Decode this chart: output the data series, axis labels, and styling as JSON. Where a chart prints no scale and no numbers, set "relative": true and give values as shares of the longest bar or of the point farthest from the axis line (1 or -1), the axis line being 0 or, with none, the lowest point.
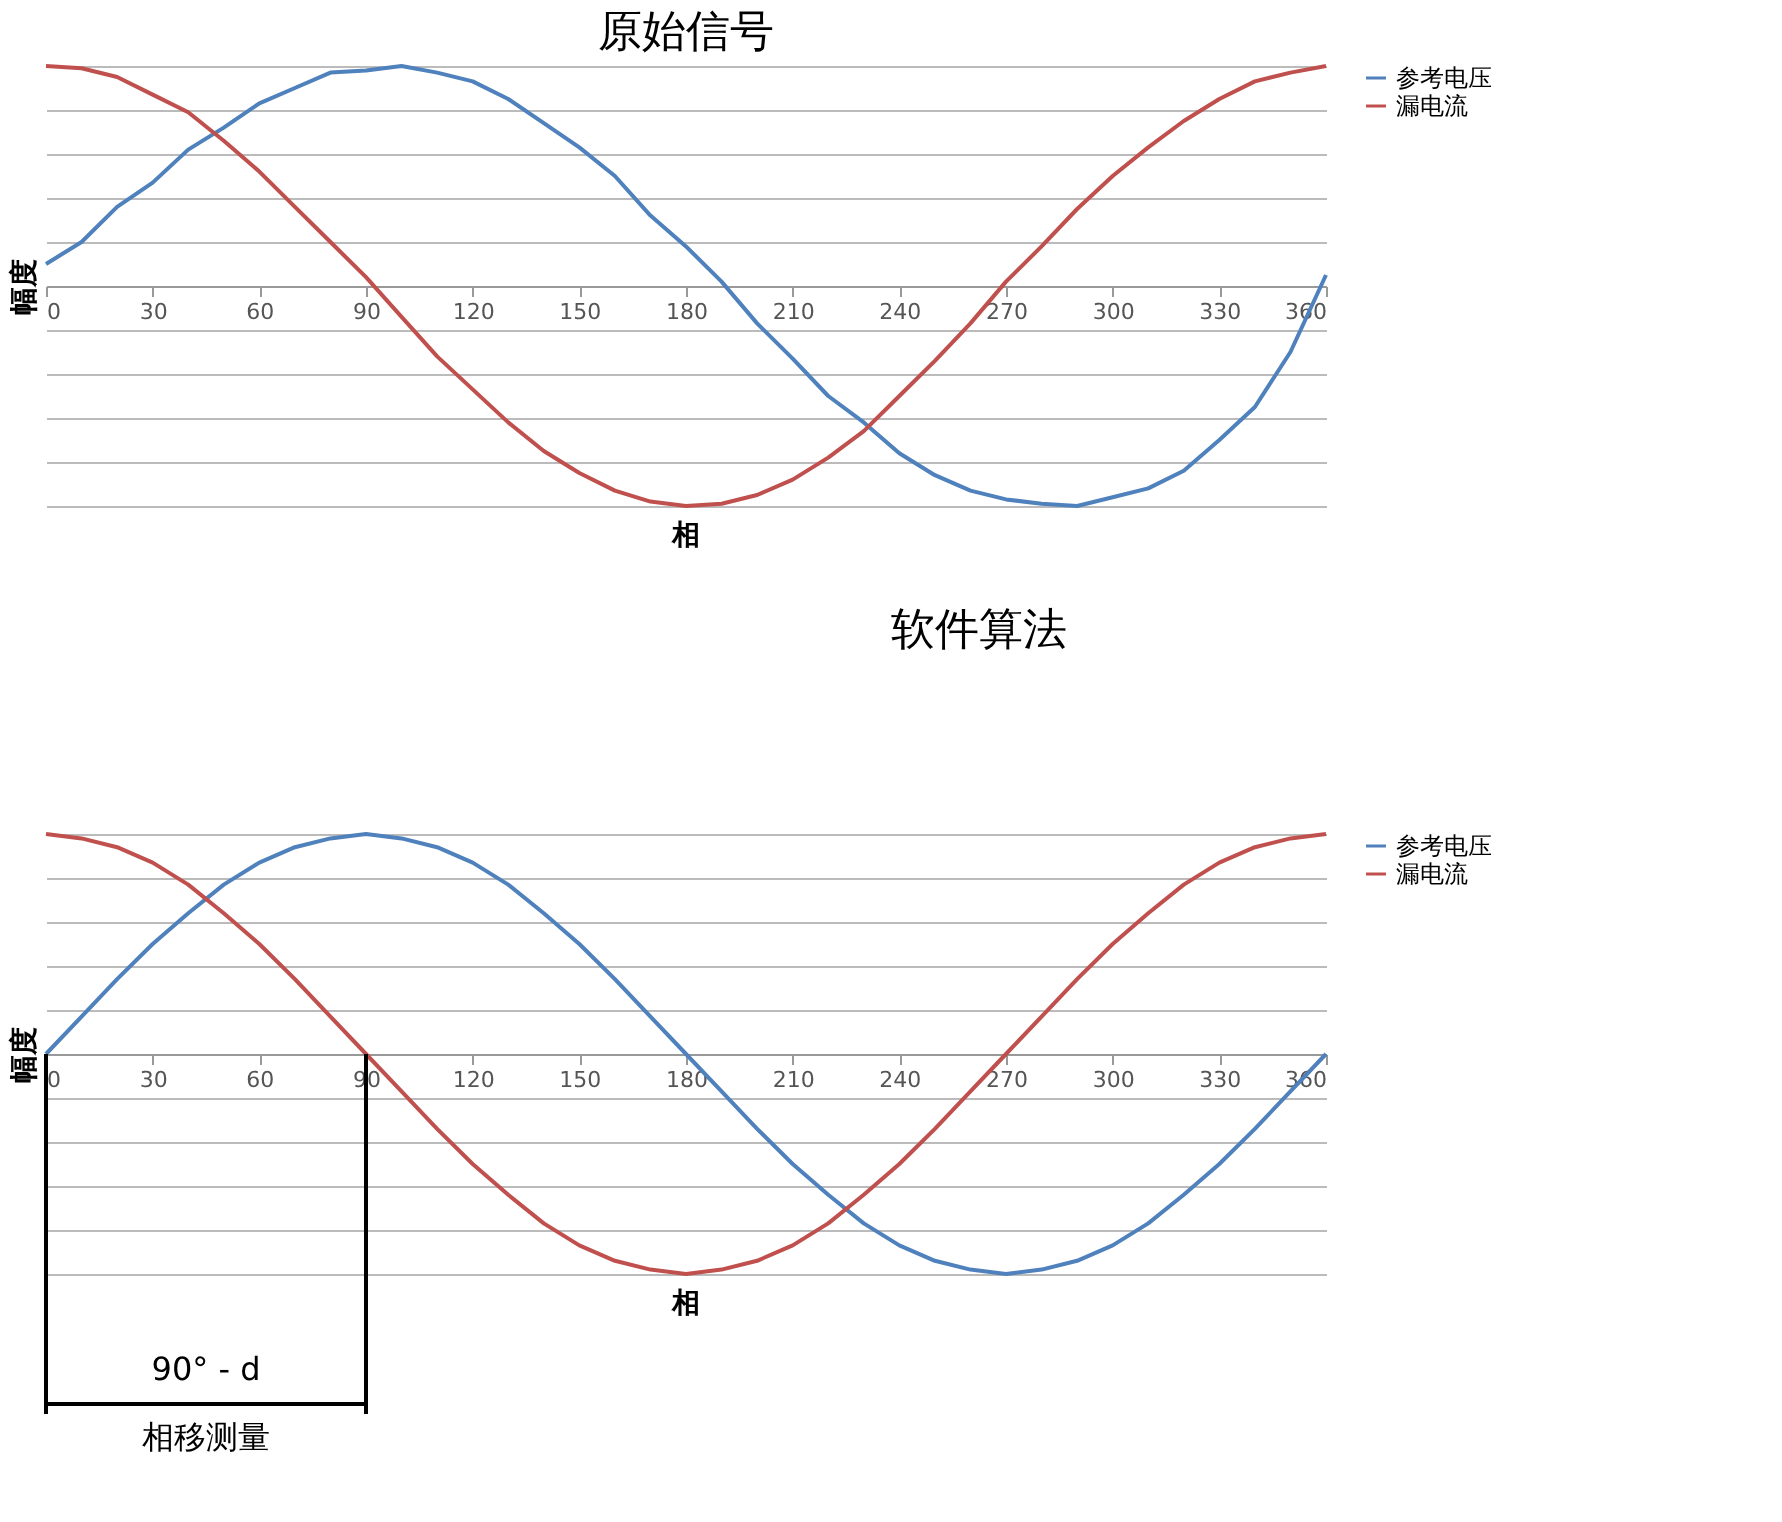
{
  "chart_data": [
    {
      "type": "line",
      "title": "原始信号",
      "xlabel": "相",
      "ylabel": "幅度",
      "relative": true,
      "xlim": [
        0,
        360
      ],
      "xticks": [
        0,
        30,
        60,
        90,
        120,
        150,
        180,
        210,
        240,
        270,
        300,
        330,
        360
      ],
      "grid": "y",
      "legend": "right",
      "annotations": [
        "软件算法"
      ],
      "x": [
        0,
        10,
        20,
        30,
        40,
        50,
        60,
        70,
        80,
        90,
        100,
        110,
        120,
        130,
        140,
        150,
        160,
        170,
        180,
        190,
        200,
        210,
        220,
        230,
        240,
        250,
        260,
        270,
        280,
        290,
        300,
        310,
        320,
        330,
        340,
        350,
        360
      ],
      "series": [
        {
          "name": "参考电压",
          "color": "#4f81bd",
          "values": [
            0.1,
            0.2,
            0.36,
            0.47,
            0.62,
            0.72,
            0.83,
            0.9,
            0.97,
            0.98,
            1,
            0.97,
            0.93,
            0.85,
            0.74,
            0.63,
            0.5,
            0.32,
            0.18,
            0.02,
            -0.17,
            -0.33,
            -0.5,
            -0.62,
            -0.76,
            -0.86,
            -0.93,
            -0.97,
            -0.99,
            -1,
            -0.96,
            -0.92,
            -0.84,
            -0.7,
            -0.55,
            -0.3,
            0.05
          ]
        },
        {
          "name": "漏电流",
          "color": "#c0504d",
          "values": [
            1,
            0.99,
            0.95,
            0.87,
            0.79,
            0.66,
            0.52,
            0.36,
            0.2,
            0.04,
            -0.14,
            -0.32,
            -0.47,
            -0.62,
            -0.75,
            -0.85,
            -0.93,
            -0.98,
            -1,
            -0.99,
            -0.95,
            -0.88,
            -0.78,
            -0.66,
            -0.5,
            -0.34,
            -0.17,
            0.02,
            0.18,
            0.35,
            0.5,
            0.63,
            0.75,
            0.85,
            0.93,
            0.97,
            1
          ]
        }
      ]
    },
    {
      "type": "line",
      "xlabel": "相",
      "ylabel": "幅度",
      "relative": true,
      "xlim": [
        0,
        360
      ],
      "xticks": [
        0,
        30,
        60,
        90,
        120,
        150,
        180,
        210,
        240,
        270,
        300,
        330,
        360
      ],
      "grid": "y",
      "legend": "right",
      "annotations": [
        "90° - d",
        "相移测量"
      ],
      "ref_lines": [
        {
          "axis": "x",
          "value": 0,
          "color": "#000000"
        },
        {
          "axis": "x",
          "value": 90,
          "color": "#000000"
        }
      ],
      "x": [
        0,
        10,
        20,
        30,
        40,
        50,
        60,
        70,
        80,
        90,
        100,
        110,
        120,
        130,
        140,
        150,
        160,
        170,
        180,
        190,
        200,
        210,
        220,
        230,
        240,
        250,
        260,
        270,
        280,
        290,
        300,
        310,
        320,
        330,
        340,
        350,
        360
      ],
      "series": [
        {
          "name": "参考电压",
          "color": "#4f81bd",
          "values": [
            0,
            0.17,
            0.34,
            0.5,
            0.64,
            0.77,
            0.87,
            0.94,
            0.98,
            1,
            0.98,
            0.94,
            0.87,
            0.77,
            0.64,
            0.5,
            0.34,
            0.17,
            0,
            -0.17,
            -0.34,
            -0.5,
            -0.64,
            -0.77,
            -0.87,
            -0.94,
            -0.98,
            -1,
            -0.98,
            -0.94,
            -0.87,
            -0.77,
            -0.64,
            -0.5,
            -0.34,
            -0.17,
            0
          ]
        },
        {
          "name": "漏电流",
          "color": "#c0504d",
          "values": [
            1,
            0.98,
            0.94,
            0.87,
            0.77,
            0.64,
            0.5,
            0.34,
            0.17,
            0,
            -0.17,
            -0.34,
            -0.5,
            -0.64,
            -0.77,
            -0.87,
            -0.94,
            -0.98,
            -1,
            -0.98,
            -0.94,
            -0.87,
            -0.77,
            -0.64,
            -0.5,
            -0.34,
            -0.17,
            0,
            0.17,
            0.34,
            0.5,
            0.64,
            0.77,
            0.87,
            0.94,
            0.98,
            1
          ]
        }
      ]
    }
  ]
}
